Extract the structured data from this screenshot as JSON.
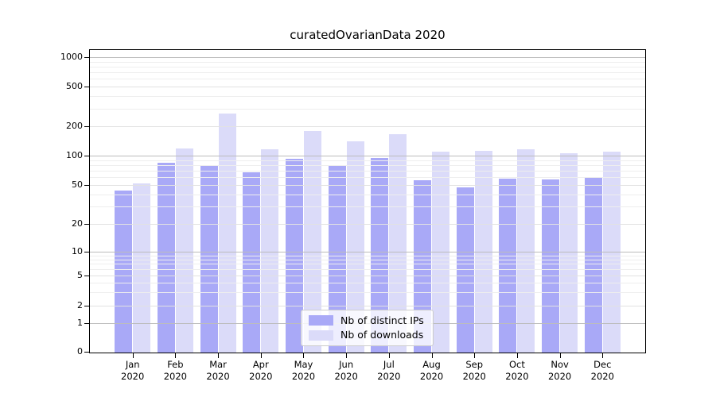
{
  "title": "curatedOvarianData 2020",
  "colors": {
    "distinct_ips_bar": "#a9a9f7",
    "downloads_bar": "#dbdbf9",
    "grid_major_decade": "#bcbcbc",
    "grid_labeled_tick": "#e2e2e2",
    "grid_minor": "#eeeeee",
    "axis_spine": "#000000",
    "legend_border": "#cccccc",
    "background": "#ffffff"
  },
  "legend": {
    "items": [
      "Nb of distinct IPs",
      "Nb of downloads"
    ]
  },
  "chart_data": {
    "type": "bar",
    "title": "curatedOvarianData 2020",
    "categories": [
      "Jan 2020",
      "Feb 2020",
      "Mar 2020",
      "Apr 2020",
      "May 2020",
      "Jun 2020",
      "Jul 2020",
      "Aug 2020",
      "Sep 2020",
      "Oct 2020",
      "Nov 2020",
      "Dec 2020"
    ],
    "series": [
      {
        "name": "Nb of distinct IPs",
        "color": "#a9a9f7",
        "values": [
          44,
          85,
          78,
          67,
          92,
          80,
          95,
          56,
          47,
          58,
          57,
          59
        ]
      },
      {
        "name": "Nb of downloads",
        "color": "#dbdbf9",
        "values": [
          52,
          118,
          270,
          117,
          180,
          140,
          165,
          110,
          112,
          116,
          105,
          110
        ]
      }
    ],
    "xlabel": "",
    "ylabel": "",
    "yscale": "symlog",
    "yticks": [
      0,
      1,
      2,
      5,
      10,
      20,
      50,
      100,
      200,
      500,
      1000
    ],
    "minor_gridlines": [
      3,
      4,
      6,
      7,
      8,
      9,
      30,
      40,
      60,
      70,
      80,
      90,
      300,
      400,
      600,
      700,
      800,
      900
    ],
    "ylim": [
      0,
      1200
    ],
    "grid": "horizontal",
    "legend_position": "lower center"
  }
}
